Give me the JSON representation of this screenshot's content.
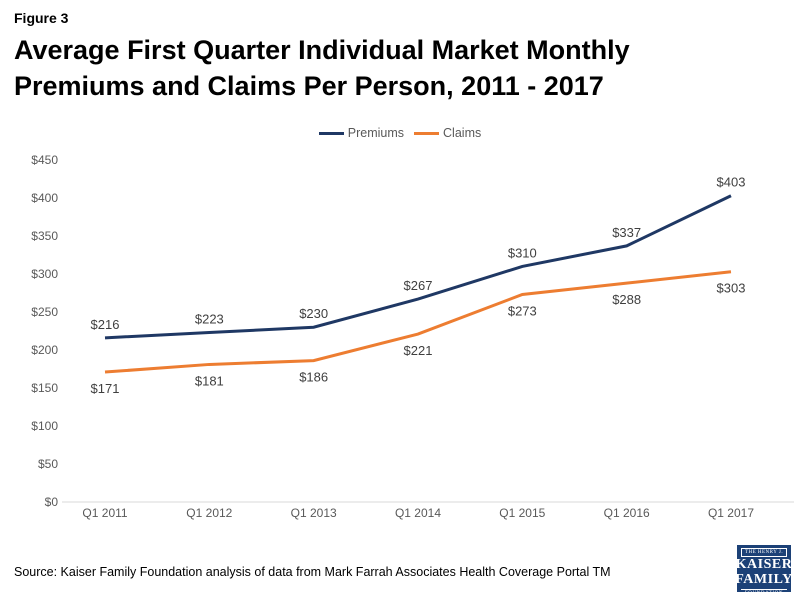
{
  "figure_label": "Figure 3",
  "title_line1": "Average First Quarter Individual Market Monthly",
  "title_line2": "Premiums and Claims Per Person, 2011 - 2017",
  "source": "Source: Kaiser Family Foundation analysis of data from Mark Farrah Associates Health Coverage Portal TM",
  "logo": {
    "line1": "THE HENRY J.",
    "line2": "KAISER",
    "line3": "FAMILY",
    "line4": "FOUNDATION",
    "background_color": "#1c4177"
  },
  "chart_data": {
    "type": "line",
    "title": "Average First Quarter Individual Market Monthly Premiums and Claims Per Person, 2011 - 2017",
    "categories": [
      "Q1 2011",
      "Q1 2012",
      "Q1 2013",
      "Q1 2014",
      "Q1 2015",
      "Q1 2016",
      "Q1 2017"
    ],
    "series": [
      {
        "name": "Premiums",
        "color": "#1f3864",
        "values": [
          216,
          223,
          230,
          267,
          310,
          337,
          403
        ],
        "label_position": "above"
      },
      {
        "name": "Claims",
        "color": "#ed7d31",
        "values": [
          171,
          181,
          186,
          221,
          273,
          288,
          303
        ],
        "label_position": "below"
      }
    ],
    "ylim": [
      0,
      450
    ],
    "y_tick_step": 50,
    "y_tick_labels": [
      "$0",
      "$50",
      "$100",
      "$150",
      "$200",
      "$250",
      "$300",
      "$350",
      "$400",
      "$450"
    ],
    "data_label_prefix": "$",
    "xlabel": "",
    "ylabel": "",
    "grid": "none",
    "legend_position": "top-center",
    "axis_color": "#d9d9d9",
    "tick_label_color": "#595959",
    "data_label_color": "#3f3f3f"
  }
}
